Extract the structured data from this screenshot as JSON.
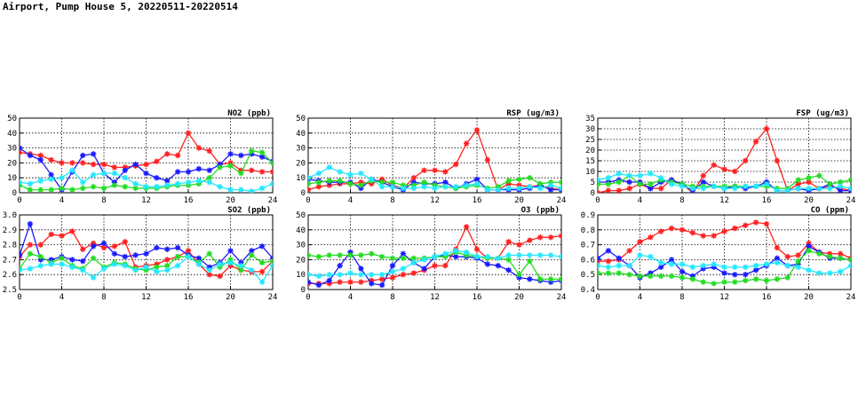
{
  "title": "Airport, Pump House 5, 20220511-20220514",
  "colors": {
    "red": "#ff2020",
    "blue": "#1a1aff",
    "green": "#22dd22",
    "cyan": "#22e8ff",
    "grid": "#000000"
  },
  "chart_data": [
    {
      "type": "line",
      "title": "NO2 (ppb)",
      "xlim": [
        0,
        24
      ],
      "ylim": [
        0,
        50
      ],
      "xticks": [
        0,
        4,
        8,
        12,
        16,
        20,
        24
      ],
      "yticks": [
        0,
        10,
        20,
        30,
        40,
        50
      ],
      "ytick_decimals": 0,
      "grid": true,
      "series": [
        {
          "color": "red",
          "values": [
            27,
            26,
            25,
            22,
            20,
            20,
            20,
            19,
            19,
            17,
            17,
            18,
            19,
            21,
            26,
            25,
            40,
            30,
            28,
            19,
            20,
            15,
            15,
            14,
            14
          ]
        },
        {
          "color": "blue",
          "values": [
            30,
            25,
            22,
            12,
            2,
            14,
            25,
            26,
            13,
            7,
            15,
            19,
            13,
            10,
            8,
            14,
            14,
            16,
            15,
            19,
            26,
            25,
            26,
            24,
            21
          ]
        },
        {
          "color": "green",
          "values": [
            5,
            2,
            2,
            2,
            3,
            2,
            3,
            4,
            3,
            5,
            4,
            3,
            3,
            3,
            4,
            5,
            5,
            6,
            10,
            17,
            18,
            13,
            28,
            27,
            20
          ]
        },
        {
          "color": "cyan",
          "values": [
            7,
            6,
            8,
            9,
            10,
            15,
            7,
            12,
            13,
            13,
            10,
            6,
            4,
            4,
            5,
            6,
            7,
            8,
            7,
            4,
            2,
            2,
            1,
            3,
            6
          ]
        }
      ]
    },
    {
      "type": "line",
      "title": "RSP (ug/m3)",
      "xlim": [
        0,
        24
      ],
      "ylim": [
        0,
        50
      ],
      "xticks": [
        0,
        4,
        8,
        12,
        16,
        20,
        24
      ],
      "yticks": [
        0,
        10,
        20,
        30,
        40,
        50
      ],
      "ytick_decimals": 0,
      "grid": true,
      "series": [
        {
          "color": "red",
          "values": [
            2,
            4,
            5,
            6,
            6,
            7,
            6,
            9,
            5,
            3,
            10,
            15,
            15,
            14,
            19,
            33,
            42,
            22,
            2,
            6,
            5,
            4,
            5,
            3,
            2
          ]
        },
        {
          "color": "blue",
          "values": [
            9,
            8,
            7,
            7,
            7,
            3,
            9,
            7,
            4,
            2,
            7,
            6,
            6,
            7,
            3,
            6,
            9,
            2,
            2,
            2,
            2,
            3,
            5,
            2,
            2
          ]
        },
        {
          "color": "green",
          "values": [
            6,
            7,
            8,
            8,
            6,
            5,
            8,
            7,
            7,
            5,
            5,
            7,
            5,
            4,
            3,
            4,
            5,
            3,
            4,
            8,
            9,
            10,
            6,
            7,
            7
          ]
        },
        {
          "color": "cyan",
          "values": [
            10,
            13,
            17,
            14,
            12,
            13,
            9,
            4,
            4,
            3,
            3,
            4,
            3,
            4,
            4,
            5,
            6,
            2,
            2,
            3,
            3,
            4,
            3,
            5,
            3
          ]
        }
      ]
    },
    {
      "type": "line",
      "title": "FSP (ug/m3)",
      "xlim": [
        0,
        24
      ],
      "ylim": [
        0,
        35
      ],
      "xticks": [
        0,
        4,
        8,
        12,
        16,
        20,
        24
      ],
      "yticks": [
        0,
        5,
        10,
        15,
        20,
        25,
        30,
        35
      ],
      "ytick_decimals": 0,
      "grid": true,
      "series": [
        {
          "color": "red",
          "values": [
            0,
            1,
            1,
            2,
            4,
            2,
            2,
            6,
            4,
            0,
            8,
            13,
            11,
            10,
            15,
            24,
            30,
            15,
            1,
            4,
            5,
            2,
            3,
            2,
            1
          ]
        },
        {
          "color": "blue",
          "values": [
            5,
            5,
            6,
            5,
            5,
            2,
            5,
            6,
            4,
            1,
            5,
            3,
            2,
            3,
            2,
            3,
            5,
            1,
            1,
            2,
            1,
            2,
            4,
            1,
            1
          ]
        },
        {
          "color": "green",
          "values": [
            4,
            4,
            5,
            8,
            4,
            4,
            6,
            5,
            4,
            3,
            3,
            3,
            3,
            3,
            3,
            3,
            3,
            2,
            2,
            6,
            7,
            8,
            4,
            5,
            6
          ]
        },
        {
          "color": "cyan",
          "values": [
            6,
            7,
            9,
            8,
            8,
            9,
            7,
            4,
            3,
            2,
            2,
            3,
            2,
            2,
            3,
            3,
            4,
            1,
            1,
            2,
            2,
            2,
            2,
            3,
            2
          ]
        }
      ]
    },
    {
      "type": "line",
      "title": "SO2 (ppb)",
      "xlim": [
        0,
        24
      ],
      "ylim": [
        2.5,
        3.0
      ],
      "xticks": [
        0,
        4,
        8,
        12,
        16,
        20,
        24
      ],
      "yticks": [
        2.5,
        2.6,
        2.7,
        2.8,
        2.9,
        3.0
      ],
      "ytick_decimals": 1,
      "grid": true,
      "series": [
        {
          "color": "red",
          "values": [
            2.72,
            2.8,
            2.8,
            2.87,
            2.86,
            2.89,
            2.77,
            2.81,
            2.78,
            2.79,
            2.82,
            2.65,
            2.66,
            2.67,
            2.7,
            2.72,
            2.76,
            2.67,
            2.6,
            2.59,
            2.66,
            2.63,
            2.62,
            2.62,
            2.69
          ]
        },
        {
          "color": "blue",
          "values": [
            2.73,
            2.94,
            2.7,
            2.7,
            2.72,
            2.7,
            2.69,
            2.79,
            2.81,
            2.74,
            2.72,
            2.73,
            2.74,
            2.78,
            2.77,
            2.78,
            2.73,
            2.71,
            2.65,
            2.68,
            2.76,
            2.68,
            2.76,
            2.79,
            2.71
          ]
        },
        {
          "color": "green",
          "values": [
            2.64,
            2.74,
            2.72,
            2.68,
            2.71,
            2.66,
            2.64,
            2.71,
            2.65,
            2.68,
            2.67,
            2.64,
            2.63,
            2.65,
            2.66,
            2.72,
            2.72,
            2.68,
            2.74,
            2.65,
            2.7,
            2.63,
            2.73,
            2.68,
            2.69
          ]
        },
        {
          "color": "cyan",
          "values": [
            2.63,
            2.64,
            2.66,
            2.67,
            2.67,
            2.65,
            2.63,
            2.58,
            2.64,
            2.67,
            2.66,
            2.63,
            2.65,
            2.62,
            2.63,
            2.66,
            2.72,
            2.67,
            2.63,
            2.67,
            2.68,
            2.66,
            2.63,
            2.55,
            2.66
          ]
        }
      ]
    },
    {
      "type": "line",
      "title": "O3 (ppb)",
      "xlim": [
        0,
        24
      ],
      "ylim": [
        0,
        50
      ],
      "xticks": [
        0,
        4,
        8,
        12,
        16,
        20,
        24
      ],
      "yticks": [
        0,
        10,
        20,
        30,
        40,
        50
      ],
      "ytick_decimals": 0,
      "grid": true,
      "series": [
        {
          "color": "red",
          "values": [
            4,
            4,
            4,
            5,
            5,
            5,
            6,
            7,
            8,
            10,
            11,
            13,
            16,
            16,
            27,
            42,
            27,
            21,
            21,
            32,
            30,
            33,
            35,
            35,
            36
          ]
        },
        {
          "color": "blue",
          "values": [
            5,
            3,
            6,
            16,
            25,
            14,
            4,
            3,
            16,
            24,
            18,
            14,
            22,
            23,
            22,
            22,
            21,
            17,
            16,
            13,
            8,
            7,
            6,
            5,
            6
          ]
        },
        {
          "color": "green",
          "values": [
            23,
            22,
            23,
            23,
            23,
            23,
            24,
            22,
            21,
            21,
            21,
            21,
            22,
            22,
            25,
            23,
            22,
            21,
            21,
            20,
            10,
            19,
            7,
            7,
            7
          ]
        },
        {
          "color": "cyan",
          "values": [
            10,
            9,
            10,
            10,
            11,
            10,
            10,
            10,
            12,
            14,
            18,
            20,
            22,
            24,
            26,
            25,
            22,
            22,
            21,
            23,
            23,
            23,
            23,
            23,
            22
          ]
        }
      ]
    },
    {
      "type": "line",
      "title": "CO (ppm)",
      "xlim": [
        0,
        24
      ],
      "ylim": [
        0.4,
        0.9
      ],
      "xticks": [
        0,
        4,
        8,
        12,
        16,
        20,
        24
      ],
      "yticks": [
        0.4,
        0.5,
        0.6,
        0.7,
        0.8,
        0.9
      ],
      "ytick_decimals": 1,
      "grid": true,
      "series": [
        {
          "color": "red",
          "values": [
            0.59,
            0.59,
            0.6,
            0.66,
            0.72,
            0.75,
            0.79,
            0.81,
            0.8,
            0.78,
            0.76,
            0.76,
            0.79,
            0.81,
            0.83,
            0.85,
            0.84,
            0.68,
            0.62,
            0.63,
            0.71,
            0.65,
            0.64,
            0.64,
            0.61
          ]
        },
        {
          "color": "blue",
          "values": [
            0.61,
            0.66,
            0.61,
            0.56,
            0.48,
            0.51,
            0.55,
            0.6,
            0.52,
            0.49,
            0.54,
            0.55,
            0.51,
            0.5,
            0.5,
            0.53,
            0.56,
            0.61,
            0.56,
            0.57,
            0.69,
            0.65,
            0.61,
            0.61,
            0.6
          ]
        },
        {
          "color": "green",
          "values": [
            0.51,
            0.51,
            0.51,
            0.5,
            0.49,
            0.49,
            0.49,
            0.49,
            0.48,
            0.47,
            0.45,
            0.44,
            0.45,
            0.45,
            0.46,
            0.47,
            0.46,
            0.47,
            0.48,
            0.59,
            0.66,
            0.64,
            0.62,
            0.61,
            0.6
          ]
        },
        {
          "color": "cyan",
          "values": [
            0.56,
            0.55,
            0.56,
            0.56,
            0.63,
            0.62,
            0.58,
            0.57,
            0.57,
            0.55,
            0.56,
            0.57,
            0.55,
            0.55,
            0.55,
            0.56,
            0.57,
            0.58,
            0.56,
            0.55,
            0.53,
            0.51,
            0.51,
            0.52,
            0.56
          ]
        }
      ]
    }
  ]
}
